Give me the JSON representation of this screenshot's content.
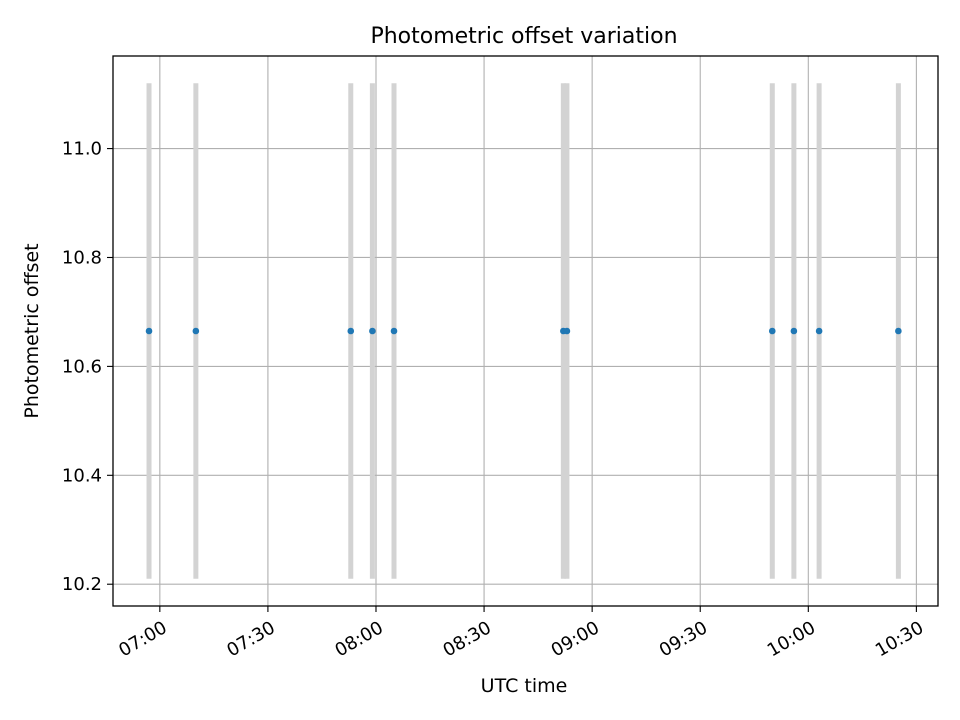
{
  "chart_data": {
    "type": "scatter",
    "title": "Photometric offset variation",
    "xlabel": "UTC time",
    "ylabel": "Photometric offset",
    "x_axis_kind": "time",
    "xlim": [
      "06:47",
      "10:36"
    ],
    "ylim": [
      10.16,
      11.17
    ],
    "grid": true,
    "x_ticks": [
      "07:00",
      "07:30",
      "08:00",
      "08:30",
      "09:00",
      "09:30",
      "10:00",
      "10:30"
    ],
    "y_ticks": [
      "10.2",
      "10.4",
      "10.6",
      "10.8",
      "11.0"
    ],
    "x": [
      "06:57",
      "07:10",
      "07:53",
      "07:59",
      "08:05",
      "08:52",
      "08:53",
      "09:50",
      "09:56",
      "10:03",
      "10:25"
    ],
    "y": [
      10.665,
      10.665,
      10.665,
      10.665,
      10.665,
      10.665,
      10.665,
      10.665,
      10.665,
      10.665,
      10.665
    ],
    "error_bar_range": [
      10.21,
      11.12
    ],
    "colors": {
      "points": "#1f77b4",
      "error_bars": "#d3d3d3",
      "grid": "#b0b0b0"
    }
  }
}
